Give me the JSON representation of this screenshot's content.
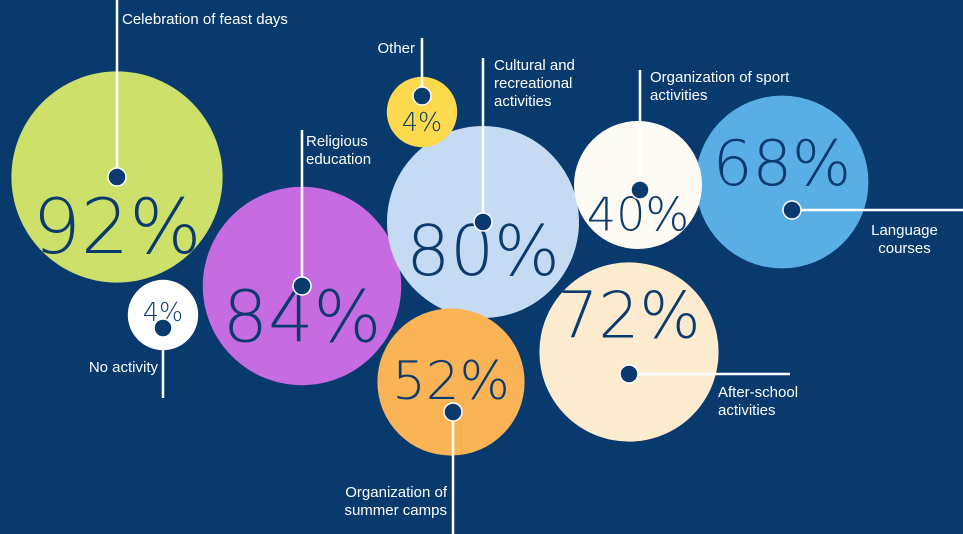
{
  "chart_data": {
    "type": "bubble",
    "categories": [
      "Celebration of feast days",
      "Religious education",
      "Cultural and recreational activities",
      "After-school activities",
      "Language courses",
      "Organization of summer camps",
      "Organization of sport activities",
      "Other",
      "No activity"
    ],
    "values": [
      92,
      84,
      80,
      72,
      68,
      52,
      40,
      4,
      4
    ],
    "value_labels": [
      "92%",
      "84%",
      "80%",
      "72%",
      "68%",
      "52%",
      "40%",
      "4%",
      "4%"
    ],
    "colors": [
      "#cde06a",
      "#c76be3",
      "#c5dbf3",
      "#fdebd0",
      "#5aaee6",
      "#fbb455",
      "#fdfbf3",
      "#fcd94d",
      "#ffffff"
    ]
  }
}
